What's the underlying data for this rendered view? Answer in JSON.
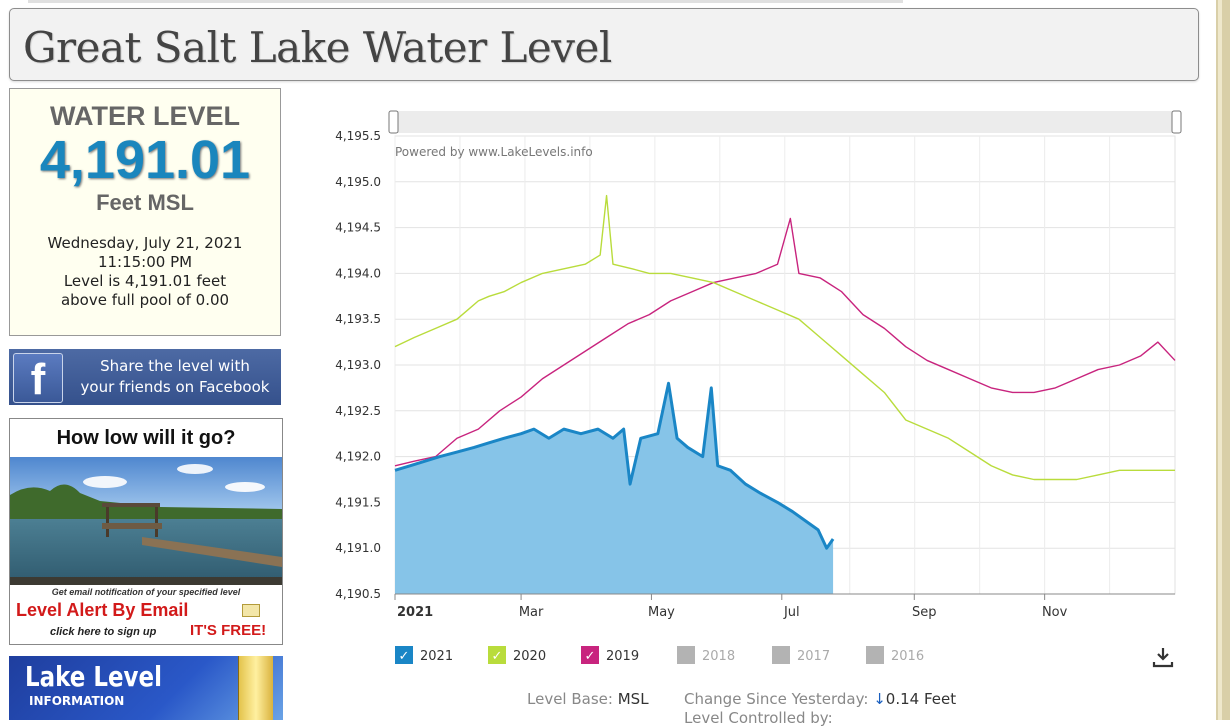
{
  "page": {
    "title": "Great Salt Lake Water Level"
  },
  "level_panel": {
    "heading": "WATER LEVEL",
    "value": "4,191.01",
    "unit": "Feet MSL",
    "date": "Wednesday, July 21, 2021",
    "time": "11:15:00 PM",
    "level_line": "Level is 4,191.01 feet",
    "pool_line": "above full pool of 0.00"
  },
  "facebook": {
    "line1": "Share the level with",
    "line2": "your friends on Facebook",
    "logo": "f",
    "icon": "facebook-icon"
  },
  "ad": {
    "heading": "How low will it go?",
    "subtitle": "Get email notification of your specified level",
    "alert": "Level Alert By Email",
    "click": "click here to sign up",
    "free": "IT'S FREE!",
    "icon": "envelope-icon"
  },
  "lake_level_info": {
    "line1": "Lake Level",
    "line2": "INFORMATION"
  },
  "chart_data": {
    "type": "line",
    "watermark": "Powered by www.LakeLevels.info",
    "xlabel": "",
    "ylabel": "",
    "x_ticks": [
      "2021",
      "Mar",
      "May",
      "Jul",
      "Sep",
      "Nov"
    ],
    "ylim": [
      4190.5,
      4195.5
    ],
    "y_ticks": [
      "4,190.5",
      "4,191.0",
      "4,191.5",
      "4,192.0",
      "4,192.5",
      "4,193.0",
      "4,193.5",
      "4,194.0",
      "4,194.5",
      "4,195.0",
      "4,195.5"
    ],
    "x_unit": "day of year",
    "grid": true,
    "legend_position": "bottom",
    "series": [
      {
        "name": "2021",
        "color": "#1a86c6",
        "fill": "#86c4e8",
        "visible": true,
        "points": [
          [
            1,
            4191.85
          ],
          [
            8,
            4191.9
          ],
          [
            15,
            4191.95
          ],
          [
            22,
            4192.0
          ],
          [
            30,
            4192.05
          ],
          [
            38,
            4192.1
          ],
          [
            45,
            4192.15
          ],
          [
            52,
            4192.2
          ],
          [
            60,
            4192.25
          ],
          [
            66,
            4192.3
          ],
          [
            73,
            4192.2
          ],
          [
            80,
            4192.3
          ],
          [
            88,
            4192.25
          ],
          [
            96,
            4192.3
          ],
          [
            103,
            4192.2
          ],
          [
            108,
            4192.3
          ],
          [
            111,
            4191.7
          ],
          [
            116,
            4192.2
          ],
          [
            124,
            4192.25
          ],
          [
            129,
            4192.8
          ],
          [
            133,
            4192.2
          ],
          [
            138,
            4192.1
          ],
          [
            145,
            4192.0
          ],
          [
            149,
            4192.75
          ],
          [
            152,
            4191.9
          ],
          [
            158,
            4191.85
          ],
          [
            165,
            4191.7
          ],
          [
            172,
            4191.6
          ],
          [
            180,
            4191.5
          ],
          [
            187,
            4191.4
          ],
          [
            193,
            4191.3
          ],
          [
            199,
            4191.2
          ],
          [
            203,
            4191.0
          ],
          [
            206,
            4191.1
          ]
        ]
      },
      {
        "name": "2020",
        "color": "#b9dc3c",
        "visible": true,
        "points": [
          [
            1,
            4193.2
          ],
          [
            10,
            4193.3
          ],
          [
            20,
            4193.4
          ],
          [
            30,
            4193.5
          ],
          [
            35,
            4193.6
          ],
          [
            40,
            4193.7
          ],
          [
            45,
            4193.75
          ],
          [
            52,
            4193.8
          ],
          [
            60,
            4193.9
          ],
          [
            70,
            4194.0
          ],
          [
            80,
            4194.05
          ],
          [
            90,
            4194.1
          ],
          [
            97,
            4194.2
          ],
          [
            100,
            4194.85
          ],
          [
            103,
            4194.1
          ],
          [
            112,
            4194.05
          ],
          [
            120,
            4194.0
          ],
          [
            130,
            4194.0
          ],
          [
            140,
            4193.95
          ],
          [
            150,
            4193.9
          ],
          [
            160,
            4193.8
          ],
          [
            170,
            4193.7
          ],
          [
            180,
            4193.6
          ],
          [
            190,
            4193.5
          ],
          [
            200,
            4193.3
          ],
          [
            210,
            4193.1
          ],
          [
            220,
            4192.9
          ],
          [
            230,
            4192.7
          ],
          [
            240,
            4192.4
          ],
          [
            250,
            4192.3
          ],
          [
            260,
            4192.2
          ],
          [
            270,
            4192.05
          ],
          [
            280,
            4191.9
          ],
          [
            290,
            4191.8
          ],
          [
            300,
            4191.75
          ],
          [
            310,
            4191.75
          ],
          [
            320,
            4191.75
          ],
          [
            330,
            4191.8
          ],
          [
            340,
            4191.85
          ],
          [
            350,
            4191.85
          ],
          [
            366,
            4191.85
          ]
        ]
      },
      {
        "name": "2019",
        "color": "#c8247e",
        "visible": true,
        "points": [
          [
            1,
            4191.9
          ],
          [
            10,
            4191.95
          ],
          [
            20,
            4192.0
          ],
          [
            30,
            4192.2
          ],
          [
            40,
            4192.3
          ],
          [
            50,
            4192.5
          ],
          [
            60,
            4192.65
          ],
          [
            70,
            4192.85
          ],
          [
            80,
            4193.0
          ],
          [
            90,
            4193.15
          ],
          [
            100,
            4193.3
          ],
          [
            110,
            4193.45
          ],
          [
            120,
            4193.55
          ],
          [
            130,
            4193.7
          ],
          [
            140,
            4193.8
          ],
          [
            150,
            4193.9
          ],
          [
            160,
            4193.95
          ],
          [
            170,
            4194.0
          ],
          [
            180,
            4194.1
          ],
          [
            186,
            4194.6
          ],
          [
            190,
            4194.0
          ],
          [
            200,
            4193.95
          ],
          [
            210,
            4193.8
          ],
          [
            220,
            4193.55
          ],
          [
            230,
            4193.4
          ],
          [
            240,
            4193.2
          ],
          [
            250,
            4193.05
          ],
          [
            260,
            4192.95
          ],
          [
            270,
            4192.85
          ],
          [
            280,
            4192.75
          ],
          [
            290,
            4192.7
          ],
          [
            300,
            4192.7
          ],
          [
            310,
            4192.75
          ],
          [
            320,
            4192.85
          ],
          [
            330,
            4192.95
          ],
          [
            340,
            4193.0
          ],
          [
            350,
            4193.1
          ],
          [
            358,
            4193.25
          ],
          [
            366,
            4193.05
          ]
        ]
      },
      {
        "name": "2018",
        "color": "#b3b3b3",
        "visible": false,
        "points": []
      },
      {
        "name": "2017",
        "color": "#b3b3b3",
        "visible": false,
        "points": []
      },
      {
        "name": "2016",
        "color": "#b3b3b3",
        "visible": false,
        "points": []
      }
    ]
  },
  "footer": {
    "base_label": "Level Base:",
    "base_value": "MSL",
    "change_label": "Change Since Yesterday:",
    "change_arrow": "↓",
    "change_value": "0.14 Feet",
    "controlled": "Level Controlled by:"
  },
  "colors": {
    "accent": "#1a86bd",
    "alert": "#d21a1a",
    "facebook": "#3b5998"
  }
}
